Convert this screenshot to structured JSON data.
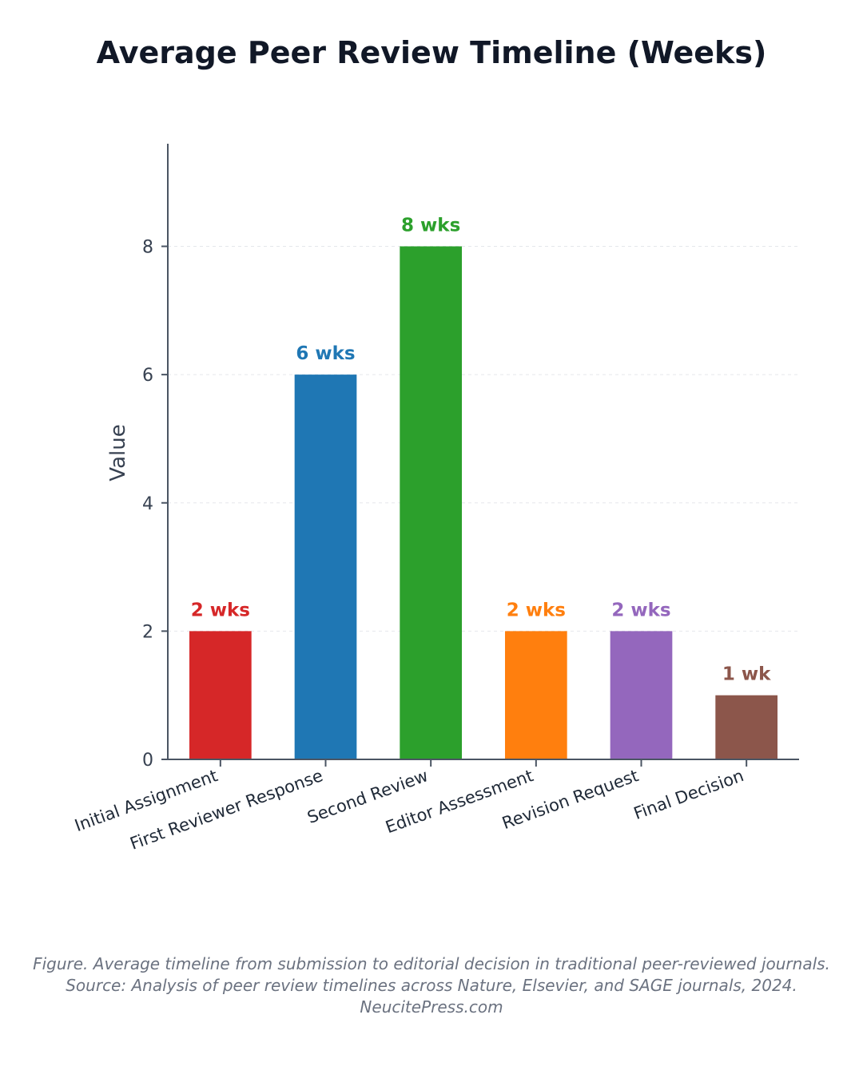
{
  "chart_data": {
    "type": "bar",
    "title": "Average Peer Review Timeline (Weeks)",
    "ylabel": "Value",
    "xlabel": "",
    "ylim": [
      0,
      9.6
    ],
    "yticks": [
      0,
      2,
      4,
      6,
      8
    ],
    "grid": true,
    "categories": [
      "Initial Assignment",
      "First Reviewer Response",
      "Second Review",
      "Editor Assessment",
      "Revision Request",
      "Final Decision"
    ],
    "values": [
      2,
      6,
      8,
      2,
      2,
      1
    ],
    "value_labels": [
      "2 wks",
      "6 wks",
      "8 wks",
      "2 wks",
      "2 wks",
      "1 wk"
    ],
    "colors": [
      "#d62728",
      "#1f77b4",
      "#2ca02c",
      "#ff7f0e",
      "#9467bd",
      "#8c564b"
    ]
  },
  "caption": {
    "line1": "Figure. Average timeline from submission to editorial decision in traditional peer-reviewed journals.",
    "line2": "Source: Analysis of peer review timelines across Nature, Elsevier, and SAGE journals, 2024.",
    "line3": "NeucitePress.com"
  }
}
